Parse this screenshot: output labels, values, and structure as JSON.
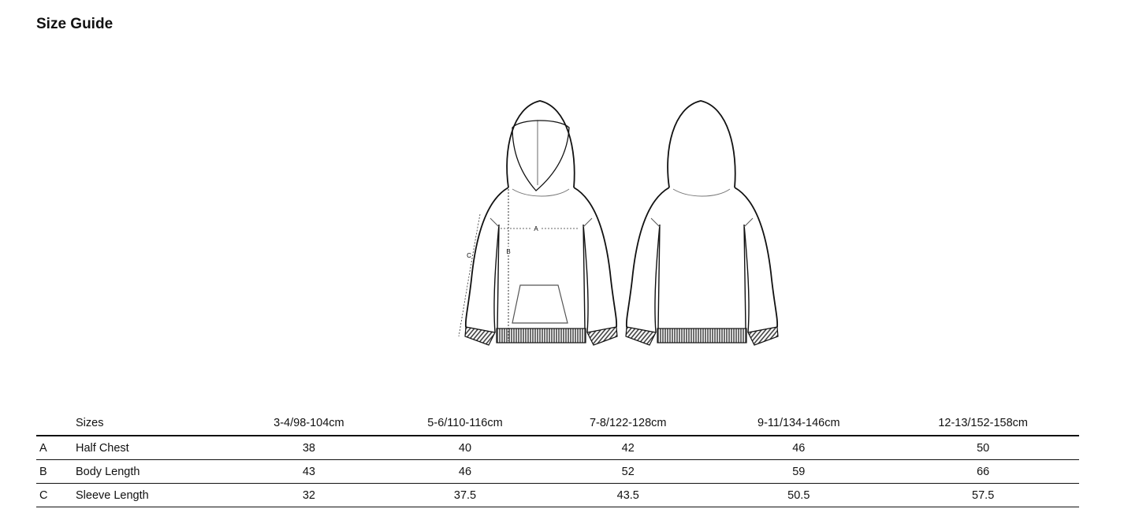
{
  "title": "Size Guide",
  "figure": {
    "measure_labels": [
      "A",
      "B",
      "C"
    ]
  },
  "table": {
    "header": [
      "",
      "Sizes",
      "3-4/98-104cm",
      "5-6/110-116cm",
      "7-8/122-128cm",
      "9-11/134-146cm",
      "12-13/152-158cm"
    ],
    "rows": [
      {
        "key": "A",
        "label": "Half Chest",
        "values": [
          "38",
          "40",
          "42",
          "46",
          "50"
        ]
      },
      {
        "key": "B",
        "label": "Body Length",
        "values": [
          "43",
          "46",
          "52",
          "59",
          "66"
        ]
      },
      {
        "key": "C",
        "label": "Sleeve Length",
        "values": [
          "32",
          "37.5",
          "43.5",
          "50.5",
          "57.5"
        ]
      }
    ]
  }
}
